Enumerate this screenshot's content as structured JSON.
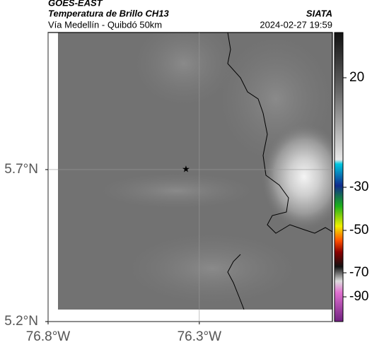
{
  "chart_data": {
    "type": "map",
    "title": "GOES-EAST",
    "subtitle": "Temperatura de Brillo CH13",
    "source": "SIATA",
    "region": "Vía Medellín - Quibdó 50km",
    "timestamp": "2024-02-27 19:59",
    "xlim": [
      -76.8,
      -75.86
    ],
    "ylim": [
      5.2,
      6.151
    ],
    "xticks": [
      {
        "value": -76.8,
        "label": "76.8°W"
      },
      {
        "value": -76.3,
        "label": "76.3°W"
      }
    ],
    "yticks": [
      {
        "value": 5.2,
        "label": "5.2°N"
      },
      {
        "value": 5.7,
        "label": "5.7°N"
      }
    ],
    "grid": true,
    "marker": {
      "x": -76.344,
      "y": 5.7
    },
    "colorbar_ticks": [
      20,
      -30,
      -50,
      -70,
      -90
    ]
  }
}
